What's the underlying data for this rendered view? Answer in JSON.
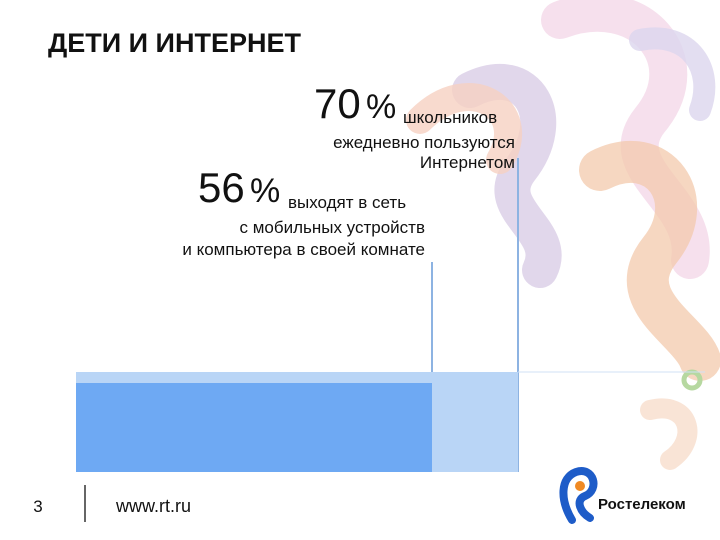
{
  "header": {
    "title": "ДЕТИ И ИНТЕРНЕТ"
  },
  "stats": [
    {
      "number": "70",
      "unit": "%",
      "lines": [
        "школьников",
        "ежедневно пользуются",
        "Интернетом"
      ]
    },
    {
      "number": "56",
      "unit": "%",
      "lines": [
        "выходят в сеть",
        "с мобильных устройств",
        "и компьютера в своей комнате"
      ]
    }
  ],
  "footer": {
    "page": "3",
    "url": "www.rt.ru",
    "brand": "Ростелеком"
  }
}
